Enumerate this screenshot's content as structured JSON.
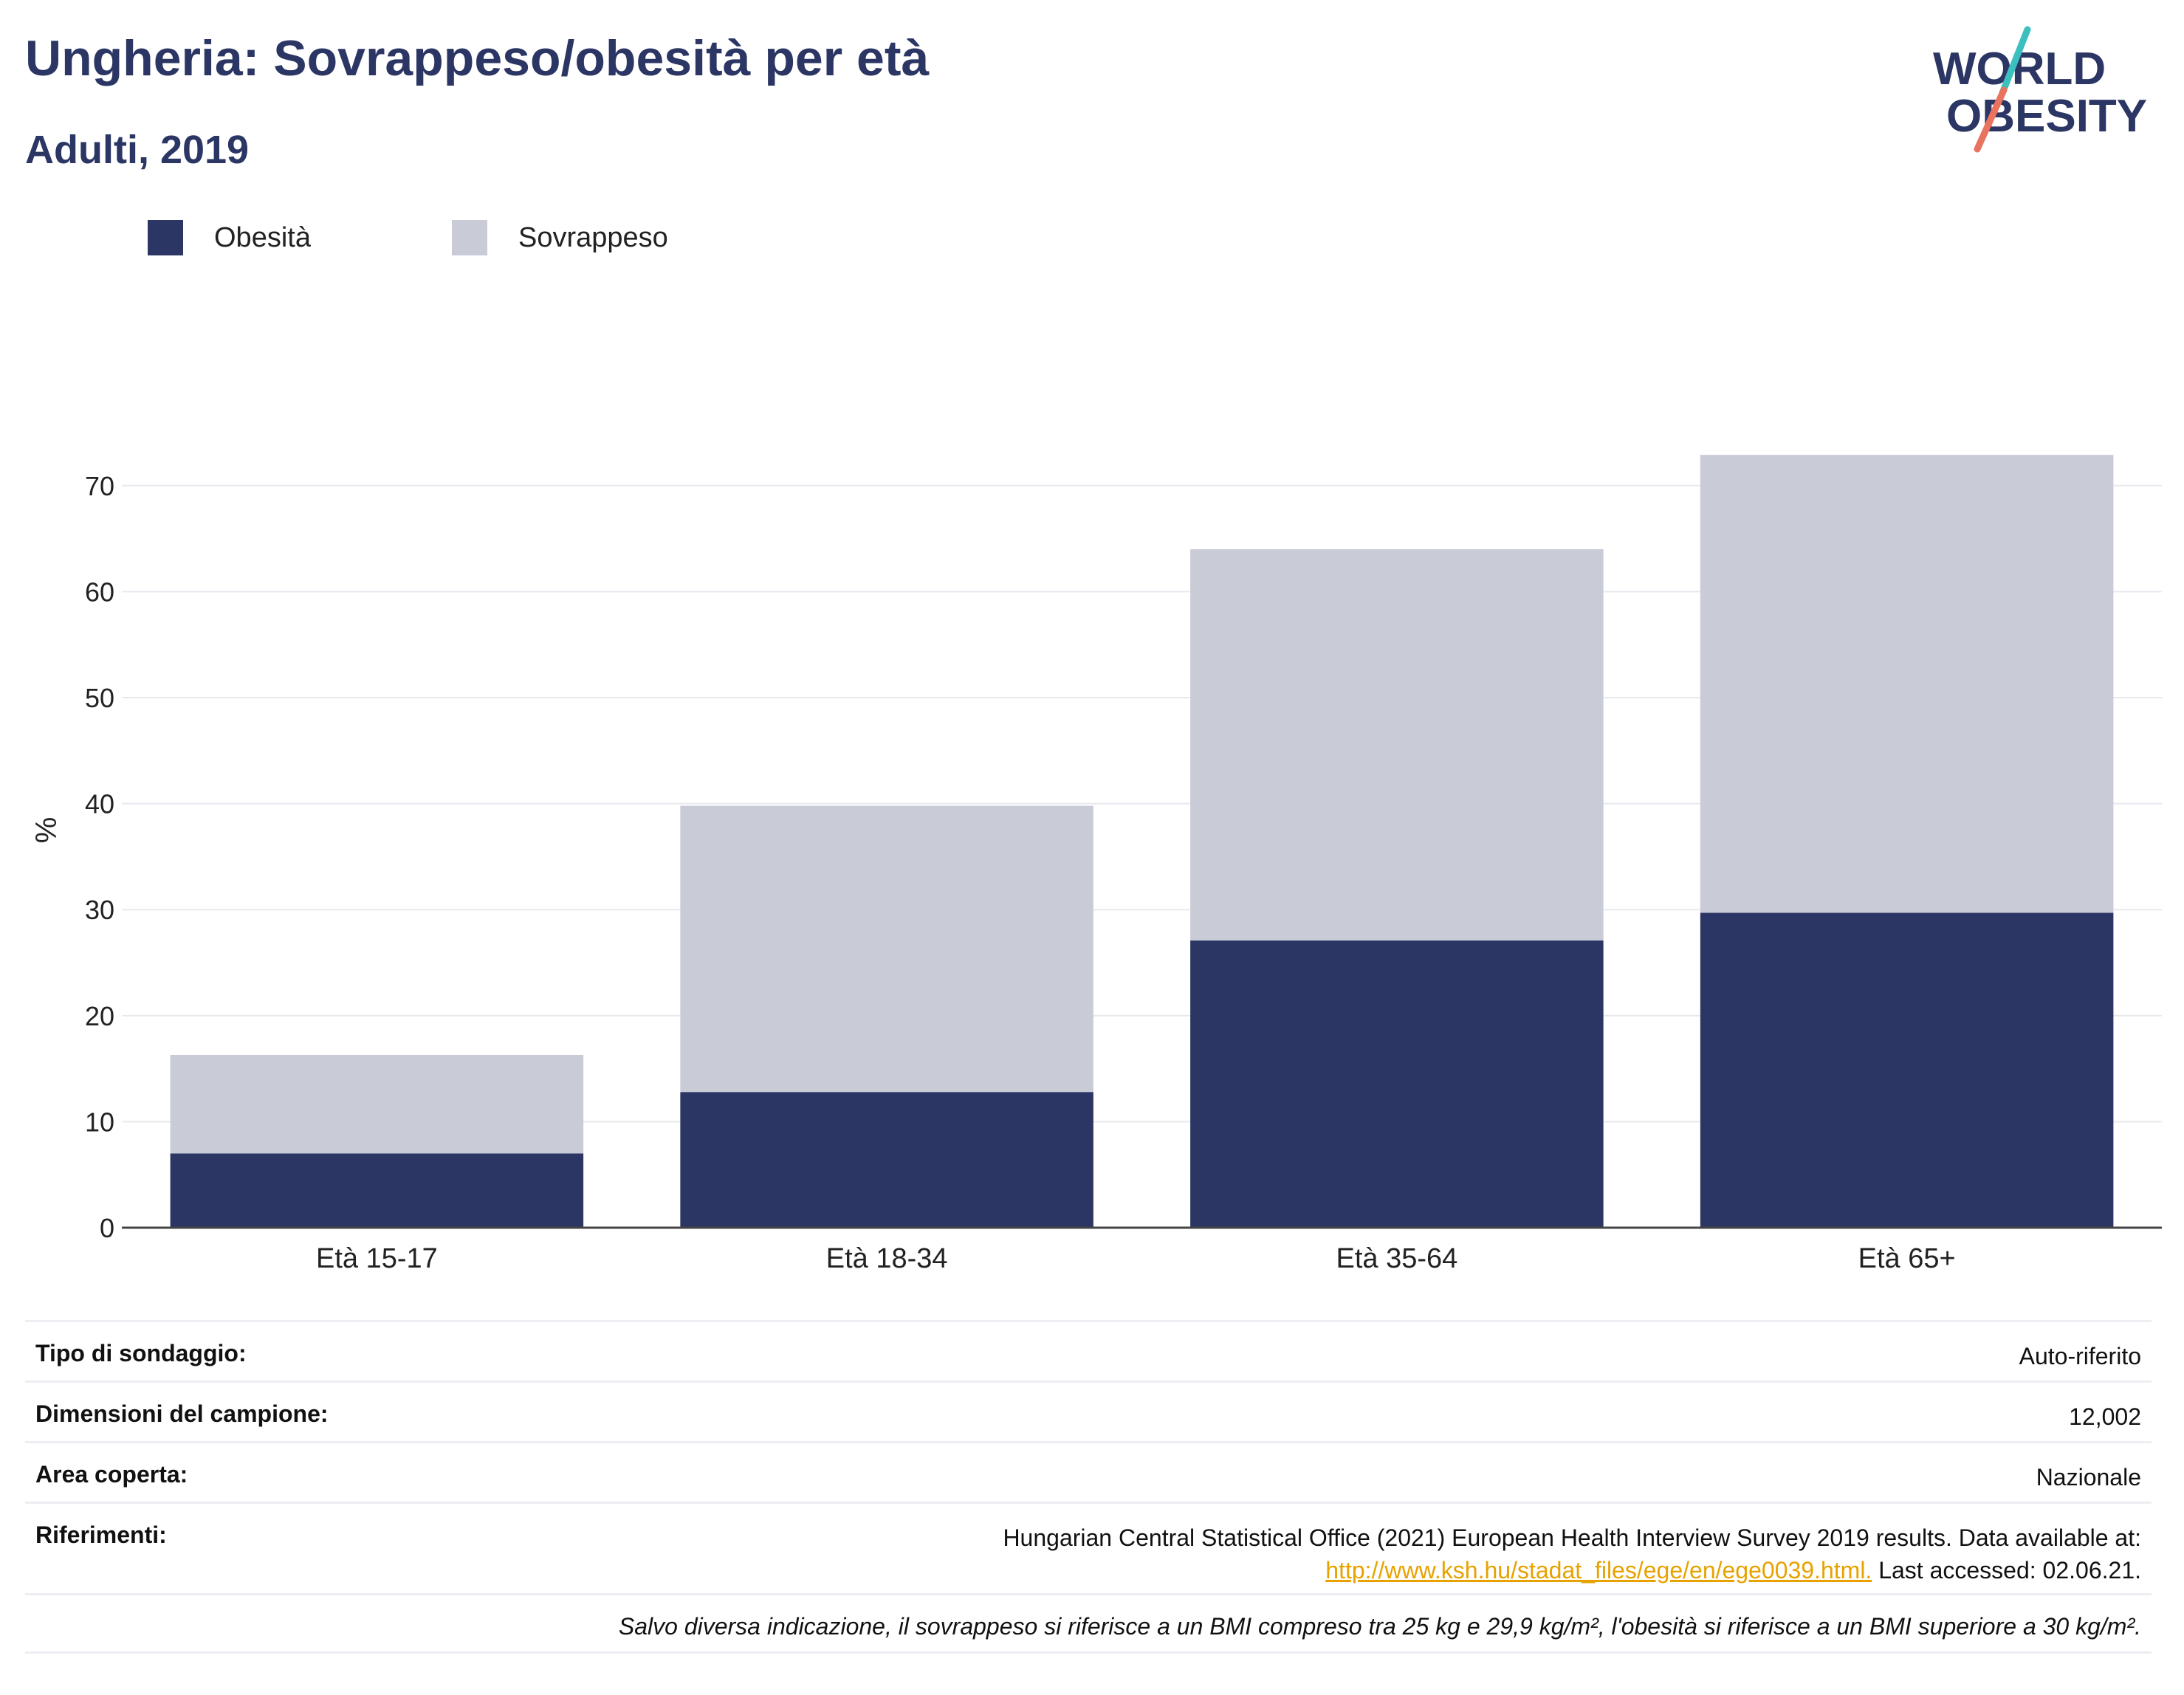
{
  "header": {
    "title": "Ungheria: Sovrappeso/obesità per età",
    "subtitle": "Adulti, 2019"
  },
  "logo": {
    "line1": "WORLD",
    "line2": "OBESITY",
    "colors": {
      "text": "#2b3664",
      "slash_top": "#3bbfbf",
      "slash_bottom": "#e8735e"
    }
  },
  "legend": [
    {
      "label": "Obesità",
      "color": "#2b3664"
    },
    {
      "label": "Sovrappeso",
      "color": "#c9cbd7"
    }
  ],
  "chart_data": {
    "type": "bar",
    "stacked": true,
    "categories": [
      "Età 15-17",
      "Età 18-34",
      "Età 35-64",
      "Età 65+"
    ],
    "series": [
      {
        "name": "Obesità",
        "color": "#2b3664",
        "values": [
          7.0,
          12.8,
          27.1,
          29.7
        ]
      },
      {
        "name": "Sovrappeso",
        "color": "#c9cbd7",
        "values": [
          9.3,
          27.0,
          36.9,
          43.2
        ]
      }
    ],
    "ylabel": "%",
    "ylim": [
      0,
      75
    ],
    "yticks": [
      0,
      10,
      20,
      30,
      40,
      50,
      60,
      70
    ],
    "grid": true,
    "legend_position": "top-left"
  },
  "info": {
    "rows": [
      {
        "key": "Tipo di sondaggio:",
        "value": "Auto-riferito"
      },
      {
        "key": "Dimensioni del campione:",
        "value": "12,002"
      },
      {
        "key": "Area coperta:",
        "value": "Nazionale"
      }
    ],
    "references": {
      "key": "Riferimenti:",
      "text": "Hungarian Central Statistical Office (2021) European Health Interview Survey 2019 results. Data available at:",
      "link": "http://www.ksh.hu/stadat_files/ege/en/ege0039.html.",
      "accessed": "Last accessed: 02.06.21."
    },
    "note": "Salvo diversa indicazione, il sovrappeso si riferisce a un BMI compreso tra 25 kg e 29,9 kg/m², l'obesità si riferisce a un BMI superiore a 30 kg/m²."
  }
}
